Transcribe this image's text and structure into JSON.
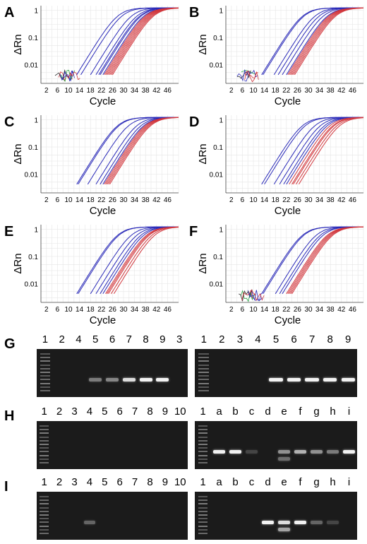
{
  "colors": {
    "background": "#ffffff",
    "grid": "#e6e6e6",
    "blue_curves": "#2a2ab8",
    "red_curves": "#d1363c",
    "noise_green": "#2ea84a",
    "gel_bg": "#1b1b1b",
    "band": "#f2f2f2"
  },
  "chart_data": [
    {
      "panel": "A",
      "type": "line",
      "xlabel": "Cycle",
      "ylabel": "ΔRn",
      "y_scale": "log",
      "x_ticks": [
        "2",
        "6",
        "10",
        "14",
        "18",
        "22",
        "26",
        "30",
        "34",
        "38",
        "42",
        "46"
      ],
      "y_ticks": [
        "1",
        "0.1",
        "0.01"
      ],
      "xlim": [
        0,
        50
      ],
      "ylim": [
        0.002,
        1.5
      ],
      "blue_midpoints": [
        24,
        25.5,
        29,
        31,
        32,
        32.5,
        33.5
      ],
      "red_midpoints": [
        34,
        34.5,
        35,
        35.5,
        36,
        36.5,
        37
      ],
      "noise": true
    },
    {
      "panel": "B",
      "type": "line",
      "xlabel": "Cycle",
      "ylabel": "ΔRn",
      "y_scale": "log",
      "x_ticks": [
        "2",
        "6",
        "10",
        "14",
        "18",
        "22",
        "26",
        "30",
        "34",
        "38",
        "42",
        "46"
      ],
      "y_ticks": [
        "1",
        "0.1",
        "0.01"
      ],
      "xlim": [
        0,
        50
      ],
      "ylim": [
        0.002,
        1.5
      ],
      "blue_midpoints": [
        24,
        24.5,
        28.5,
        30,
        31.5,
        33
      ],
      "red_midpoints": [
        33.5,
        34,
        34.5,
        35,
        35.5,
        36
      ],
      "noise": true
    },
    {
      "panel": "C",
      "type": "line",
      "xlabel": "Cycle",
      "ylabel": "ΔRn",
      "y_scale": "log",
      "x_ticks": [
        "2",
        "6",
        "10",
        "14",
        "18",
        "22",
        "26",
        "30",
        "34",
        "38",
        "42",
        "46"
      ],
      "y_ticks": [
        "1",
        "0.1",
        "0.01"
      ],
      "xlim": [
        0,
        50
      ],
      "ylim": [
        0.002,
        1.5
      ],
      "blue_midpoints": [
        24,
        24.5,
        28,
        31,
        32.5,
        33.5
      ],
      "red_midpoints": [
        34,
        34.5,
        35,
        35.5,
        36
      ],
      "noise": false
    },
    {
      "panel": "D",
      "type": "line",
      "xlabel": "Cycle",
      "ylabel": "ΔRn",
      "y_scale": "log",
      "x_ticks": [
        "2",
        "6",
        "10",
        "14",
        "18",
        "22",
        "26",
        "30",
        "34",
        "38",
        "42",
        "46"
      ],
      "y_ticks": [
        "1",
        "0.1",
        "0.01"
      ],
      "xlim": [
        0,
        50
      ],
      "ylim": [
        0.002,
        1.5
      ],
      "blue_midpoints": [
        24,
        25,
        28.5,
        30.5,
        32,
        33
      ],
      "red_midpoints": [
        34,
        35,
        35.5,
        36.5,
        37.5
      ],
      "noise": false
    },
    {
      "panel": "E",
      "type": "line",
      "xlabel": "Cycle",
      "ylabel": "ΔRn",
      "y_scale": "log",
      "x_ticks": [
        "2",
        "6",
        "10",
        "14",
        "18",
        "22",
        "26",
        "30",
        "34",
        "38",
        "42",
        "46"
      ],
      "y_ticks": [
        "1",
        "0.1",
        "0.01"
      ],
      "xlim": [
        0,
        50
      ],
      "ylim": [
        0.002,
        1.5
      ],
      "blue_midpoints": [
        24,
        24.5,
        29,
        31,
        32.5,
        33.5
      ],
      "red_midpoints": [
        34.5,
        35,
        35.5,
        36.5,
        37.5
      ],
      "noise": false
    },
    {
      "panel": "F",
      "type": "line",
      "xlabel": "Cycle",
      "ylabel": "ΔRn",
      "y_scale": "log",
      "x_ticks": [
        "2",
        "6",
        "10",
        "14",
        "18",
        "22",
        "26",
        "30",
        "34",
        "38",
        "42",
        "46"
      ],
      "y_ticks": [
        "1",
        "0.1",
        "0.01"
      ],
      "xlim": [
        0,
        50
      ],
      "ylim": [
        0.002,
        1.5
      ],
      "blue_midpoints": [
        24,
        24.5,
        29,
        30.5,
        31.5
      ],
      "red_midpoints": [
        33,
        33.5,
        34,
        34.5,
        35
      ],
      "noise": true
    }
  ],
  "gels": {
    "G": {
      "label": "G",
      "left": {
        "lanes": [
          "1",
          "2",
          "4",
          "5",
          "6",
          "7",
          "8",
          "9",
          "3"
        ],
        "bands": [
          {
            "lane": 3,
            "intensity": 0.45
          },
          {
            "lane": 4,
            "intensity": 0.5
          },
          {
            "lane": 5,
            "intensity": 0.9
          },
          {
            "lane": 6,
            "intensity": 1.0
          },
          {
            "lane": 7,
            "intensity": 1.0
          }
        ]
      },
      "right": {
        "lanes": [
          "1",
          "2",
          "3",
          "4",
          "5",
          "6",
          "7",
          "8",
          "9"
        ],
        "bands": [
          {
            "lane": 4,
            "intensity": 1.0
          },
          {
            "lane": 5,
            "intensity": 1.0
          },
          {
            "lane": 6,
            "intensity": 1.0
          },
          {
            "lane": 7,
            "intensity": 1.0
          },
          {
            "lane": 8,
            "intensity": 1.0
          }
        ]
      }
    },
    "H": {
      "label": "H",
      "left": {
        "lanes": [
          "1",
          "2",
          "3",
          "4",
          "5",
          "6",
          "7",
          "8",
          "9",
          "10"
        ],
        "bands": []
      },
      "right": {
        "lanes": [
          "1",
          "a",
          "b",
          "c",
          "d",
          "e",
          "f",
          "g",
          "h",
          "i"
        ],
        "bands": [
          {
            "lane": 1,
            "intensity": 1.0
          },
          {
            "lane": 2,
            "intensity": 1.0
          },
          {
            "lane": 3,
            "intensity": 0.2
          },
          {
            "lane": 5,
            "intensity": 0.55,
            "double": true
          },
          {
            "lane": 6,
            "intensity": 0.7
          },
          {
            "lane": 7,
            "intensity": 0.55
          },
          {
            "lane": 8,
            "intensity": 0.45
          },
          {
            "lane": 9,
            "intensity": 1.0
          }
        ]
      }
    },
    "I": {
      "label": "I",
      "left": {
        "lanes": [
          "1",
          "2",
          "3",
          "4",
          "5",
          "6",
          "7",
          "8",
          "9",
          "10"
        ],
        "bands": [
          {
            "lane": 3,
            "intensity": 0.35
          }
        ]
      },
      "right": {
        "lanes": [
          "1",
          "a",
          "b",
          "c",
          "d",
          "e",
          "f",
          "g",
          "h",
          "i"
        ],
        "bands": [
          {
            "lane": 4,
            "intensity": 1.0
          },
          {
            "lane": 5,
            "intensity": 0.9,
            "double": true
          },
          {
            "lane": 6,
            "intensity": 1.0
          },
          {
            "lane": 7,
            "intensity": 0.35
          },
          {
            "lane": 8,
            "intensity": 0.2
          }
        ]
      }
    }
  }
}
